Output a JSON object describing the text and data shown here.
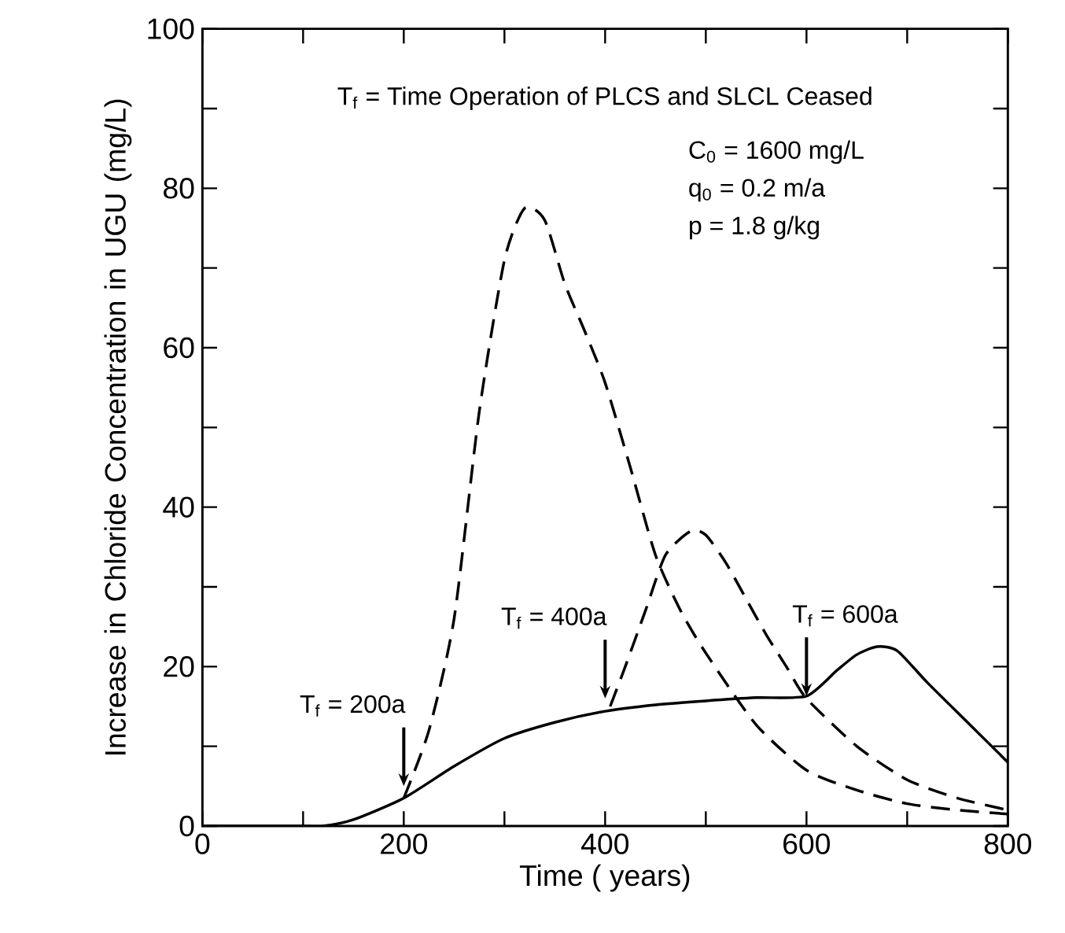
{
  "chart_data": {
    "type": "line",
    "xlabel": "Time ( years)",
    "ylabel": "Increase in Chloride Concentration in UGU (mg/L)",
    "xlim": [
      0,
      800
    ],
    "ylim": [
      0,
      100
    ],
    "xticks": [
      0,
      {
        "value": 100,
        "label": null
      },
      200,
      {
        "value": 300,
        "label": null
      },
      400,
      {
        "value": 500,
        "label": null
      },
      600,
      {
        "value": 700,
        "label": null
      },
      800
    ],
    "yticks": [
      0,
      {
        "value": 10,
        "label": null
      },
      20,
      {
        "value": 30,
        "label": null
      },
      40,
      {
        "value": 50,
        "label": null
      },
      60,
      {
        "value": 70,
        "label": null
      },
      80,
      {
        "value": 90,
        "label": null
      },
      100
    ],
    "grid": false,
    "marker": "none",
    "series": [
      {
        "color": "#000000",
        "line_style": "solid",
        "x": [
          0,
          100,
          120,
          150,
          200,
          250,
          300,
          350,
          400,
          450,
          500,
          550,
          600,
          630,
          650,
          670,
          690,
          720,
          760,
          800
        ],
        "values": [
          0,
          0,
          0,
          0.8,
          3.5,
          7.5,
          11,
          13,
          14.4,
          15.2,
          15.7,
          16.1,
          16.3,
          19.5,
          21.5,
          22.5,
          22,
          18,
          13,
          8
        ]
      },
      {
        "color": "#000000",
        "line_style": "dashed",
        "x": [
          200,
          225,
          250,
          275,
          300,
          320,
          340,
          360,
          380,
          400,
          425,
          450,
          475,
          500,
          550,
          600,
          650,
          700,
          750,
          800
        ],
        "values": [
          3.5,
          12,
          26,
          52,
          71,
          77.5,
          76,
          68,
          62,
          55.6,
          45,
          34,
          27,
          21.7,
          12.7,
          7,
          4.5,
          2.8,
          2,
          1.5
        ]
      },
      {
        "color": "#000000",
        "line_style": "dashed",
        "x": [
          405,
          420,
          440,
          460,
          485,
          500,
          520,
          540,
          560,
          580,
          600,
          650,
          700,
          750,
          800
        ],
        "values": [
          15,
          20,
          27,
          34,
          37,
          36.5,
          33,
          28.5,
          24,
          20,
          16,
          10,
          5.8,
          3.5,
          2
        ]
      }
    ],
    "annotations": [
      "T$_{f}$ = Time Operation of PLCS and SLCL Ceased",
      "C$_{0}$ = 1600 mg/L",
      "q$_{0}$ = 0.2 m/a",
      "p = 1.8 g/kg",
      {
        "text": "T$_{f}$ = 200a",
        "x": 200,
        "y": 5
      },
      {
        "text": "T$_{f}$ = 400a",
        "x": 400,
        "y": 16
      },
      {
        "text": "T$_{f}$ = 600a",
        "x": 600,
        "y": 16.3
      }
    ]
  }
}
